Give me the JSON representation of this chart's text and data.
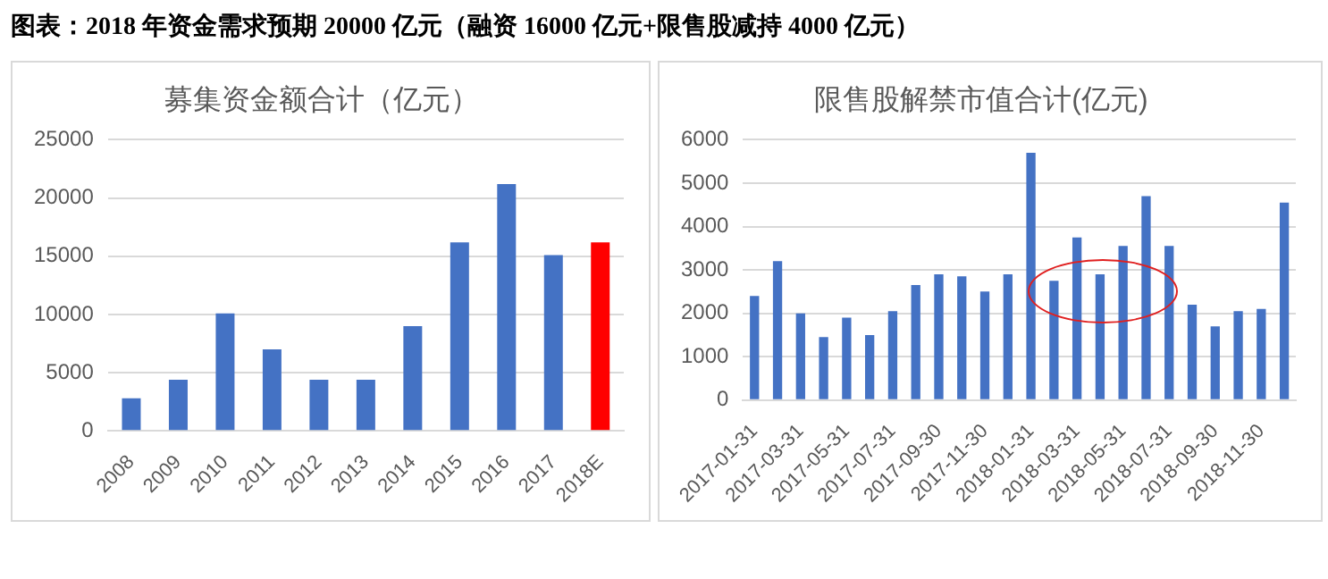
{
  "chart_data": [
    {
      "type": "bar",
      "title": "募集资金额合计（亿元）",
      "annotations": [
        "图表：2018 年资金需求预期 20000 亿元（融资 16000 亿元+限售股减持 4000 亿元）"
      ],
      "categories": [
        "2008",
        "2009",
        "2010",
        "2011",
        "2012",
        "2013",
        "2014",
        "2015",
        "2016",
        "2017",
        "2018E"
      ],
      "values": [
        2800,
        4400,
        10100,
        7000,
        4400,
        4400,
        9000,
        16200,
        21200,
        15100,
        16200
      ],
      "colors": [
        "#4472c4",
        "#4472c4",
        "#4472c4",
        "#4472c4",
        "#4472c4",
        "#4472c4",
        "#4472c4",
        "#4472c4",
        "#4472c4",
        "#4472c4",
        "#ff0000"
      ],
      "ylim": [
        0,
        25000
      ],
      "yticks": [
        0,
        5000,
        10000,
        15000,
        20000,
        25000
      ],
      "grid": "y",
      "legend": false
    },
    {
      "type": "bar",
      "title": "限售股解禁市值合计(亿元)",
      "categories": [
        "2017-01-31",
        null,
        "2017-03-31",
        null,
        "2017-05-31",
        null,
        "2017-07-31",
        null,
        "2017-09-30",
        null,
        "2017-11-30",
        null,
        "2018-01-31",
        null,
        "2018-03-31",
        null,
        "2018-05-31",
        null,
        "2018-07-31",
        null,
        "2018-09-30",
        null,
        "2018-11-30",
        null
      ],
      "values": [
        2400,
        3200,
        2000,
        1450,
        1900,
        1500,
        2050,
        2650,
        2900,
        2850,
        2500,
        2900,
        5700,
        2750,
        3750,
        2900,
        3550,
        4700,
        3550,
        2200,
        1700,
        2050,
        2100,
        4550
      ],
      "color": "#4472c4",
      "ylim": [
        0,
        6000
      ],
      "yticks": [
        0,
        1000,
        2000,
        3000,
        4000,
        5000,
        6000
      ],
      "grid": "y",
      "legend": false
    }
  ]
}
